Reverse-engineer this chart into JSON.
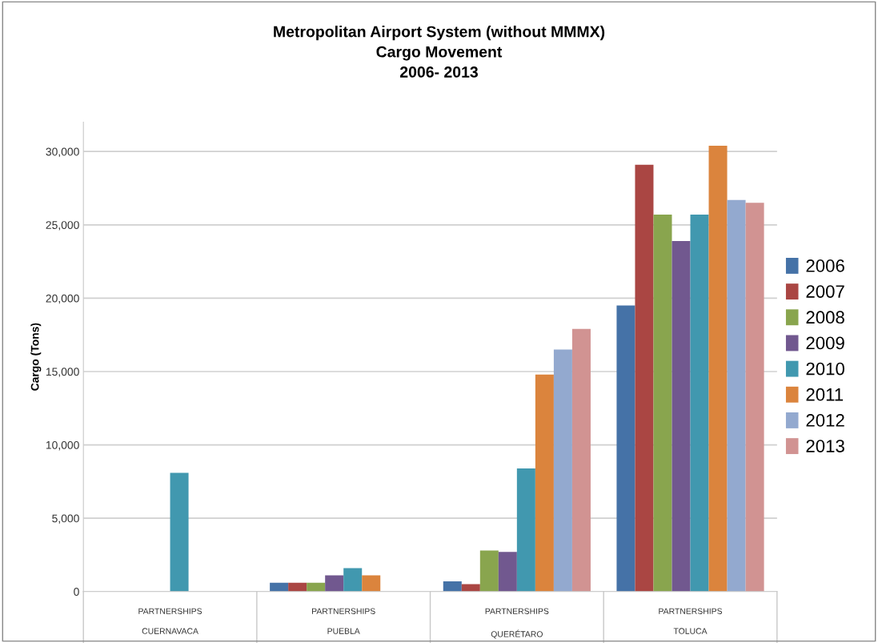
{
  "chart_data": {
    "type": "bar",
    "title": "Metropolitan Airport System (without MMMX)\nCargo Movement\n2006- 2013",
    "ylabel": "Cargo (Tons)",
    "categories": [
      "PARTNERSHIPS\nCUERNAVACA",
      "PARTNERSHIPS\nPUEBLA",
      "PARTNERSHIPS\nQUERÉTARO",
      "PARTNERSHIPS\nTOLUCA"
    ],
    "series": [
      {
        "name": "2006",
        "color": "#4572a7",
        "values": [
          null,
          600,
          700,
          19500
        ]
      },
      {
        "name": "2007",
        "color": "#aa4643",
        "values": [
          null,
          600,
          500,
          29100
        ]
      },
      {
        "name": "2008",
        "color": "#89a54e",
        "values": [
          null,
          600,
          2800,
          25700
        ]
      },
      {
        "name": "2009",
        "color": "#71588f",
        "values": [
          null,
          1100,
          2700,
          23900
        ]
      },
      {
        "name": "2010",
        "color": "#4198af",
        "values": [
          8100,
          1600,
          8400,
          25700
        ]
      },
      {
        "name": "2011",
        "color": "#db843d",
        "values": [
          null,
          1100,
          14800,
          30400
        ]
      },
      {
        "name": "2012",
        "color": "#93a9cf",
        "values": [
          null,
          null,
          16500,
          26700
        ]
      },
      {
        "name": "2013",
        "color": "#d19392",
        "values": [
          null,
          null,
          17900,
          26500
        ]
      }
    ],
    "ylim": [
      0,
      32000
    ],
    "yticks": [
      {
        "value": 0,
        "label": "0"
      },
      {
        "value": 5000,
        "label": "5,000"
      },
      {
        "value": 10000,
        "label": "10,000"
      },
      {
        "value": 15000,
        "label": "15,000"
      },
      {
        "value": 20000,
        "label": "20,000"
      },
      {
        "value": 25000,
        "label": "25,000"
      },
      {
        "value": 30000,
        "label": "30,000"
      }
    ],
    "grid": "y",
    "legend": "right"
  }
}
